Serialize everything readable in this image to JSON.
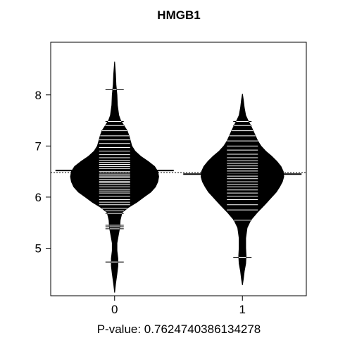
{
  "chart_data": {
    "type": "beanplot",
    "title": "HMGB1",
    "xlabel": "P-value: 0.7624740386134278",
    "ylabel": "",
    "categories": [
      "0",
      "1"
    ],
    "y_ticks": [
      5,
      6,
      7,
      8
    ],
    "x_range": [
      0.5,
      2.5
    ],
    "y_range": [
      4.07,
      9.03
    ],
    "overall_mean": 6.48,
    "grid": false,
    "legend": "none",
    "series_color": "#000000",
    "beans": [
      {
        "category": "0",
        "mean": 6.52,
        "density": [
          [
            4.13,
            0.0
          ],
          [
            4.3,
            0.02
          ],
          [
            4.5,
            0.05
          ],
          [
            4.65,
            0.07
          ],
          [
            4.8,
            0.07
          ],
          [
            4.95,
            0.05
          ],
          [
            5.1,
            0.05
          ],
          [
            5.25,
            0.08
          ],
          [
            5.4,
            0.11
          ],
          [
            5.55,
            0.12
          ],
          [
            5.7,
            0.16
          ],
          [
            5.8,
            0.3
          ],
          [
            5.9,
            0.48
          ],
          [
            6.0,
            0.63
          ],
          [
            6.1,
            0.78
          ],
          [
            6.2,
            0.88
          ],
          [
            6.3,
            0.93
          ],
          [
            6.4,
            0.95
          ],
          [
            6.5,
            0.93
          ],
          [
            6.6,
            0.86
          ],
          [
            6.7,
            0.72
          ],
          [
            6.8,
            0.56
          ],
          [
            6.9,
            0.44
          ],
          [
            7.0,
            0.37
          ],
          [
            7.1,
            0.34
          ],
          [
            7.2,
            0.31
          ],
          [
            7.3,
            0.27
          ],
          [
            7.4,
            0.2
          ],
          [
            7.5,
            0.13
          ],
          [
            7.6,
            0.09
          ],
          [
            7.8,
            0.06
          ],
          [
            8.0,
            0.05
          ],
          [
            8.2,
            0.03
          ],
          [
            8.4,
            0.02
          ],
          [
            8.65,
            0.0
          ]
        ],
        "points": [
          4.73,
          5.38,
          5.42,
          5.45,
          5.68,
          5.73,
          5.78,
          5.85,
          5.9,
          5.95,
          6.02,
          6.08,
          6.12,
          6.15,
          6.2,
          6.24,
          6.28,
          6.31,
          6.35,
          6.38,
          6.41,
          6.44,
          6.47,
          6.5,
          6.53,
          6.56,
          6.6,
          6.64,
          6.68,
          6.72,
          6.77,
          6.83,
          6.9,
          6.97,
          7.05,
          7.12,
          7.2,
          7.3,
          7.4,
          7.48,
          8.1
        ]
      },
      {
        "category": "1",
        "mean": 6.45,
        "density": [
          [
            4.28,
            0.0
          ],
          [
            4.4,
            0.02
          ],
          [
            4.55,
            0.04
          ],
          [
            4.7,
            0.07
          ],
          [
            4.85,
            0.08
          ],
          [
            5.0,
            0.07
          ],
          [
            5.2,
            0.07
          ],
          [
            5.4,
            0.1
          ],
          [
            5.55,
            0.18
          ],
          [
            5.7,
            0.32
          ],
          [
            5.85,
            0.48
          ],
          [
            6.0,
            0.63
          ],
          [
            6.1,
            0.73
          ],
          [
            6.2,
            0.8
          ],
          [
            6.3,
            0.86
          ],
          [
            6.4,
            0.89
          ],
          [
            6.5,
            0.88
          ],
          [
            6.6,
            0.83
          ],
          [
            6.7,
            0.74
          ],
          [
            6.8,
            0.63
          ],
          [
            6.9,
            0.5
          ],
          [
            7.0,
            0.4
          ],
          [
            7.1,
            0.33
          ],
          [
            7.2,
            0.28
          ],
          [
            7.3,
            0.23
          ],
          [
            7.4,
            0.18
          ],
          [
            7.5,
            0.12
          ],
          [
            7.6,
            0.07
          ],
          [
            7.75,
            0.04
          ],
          [
            7.9,
            0.02
          ],
          [
            8.02,
            0.0
          ]
        ],
        "points": [
          4.82,
          5.55,
          5.75,
          5.85,
          5.95,
          6.02,
          6.08,
          6.14,
          6.2,
          6.25,
          6.3,
          6.36,
          6.41,
          6.46,
          6.51,
          6.56,
          6.61,
          6.66,
          6.71,
          6.77,
          6.84,
          6.92,
          7.0,
          7.1,
          7.2,
          7.3,
          7.4,
          7.48
        ]
      }
    ]
  }
}
